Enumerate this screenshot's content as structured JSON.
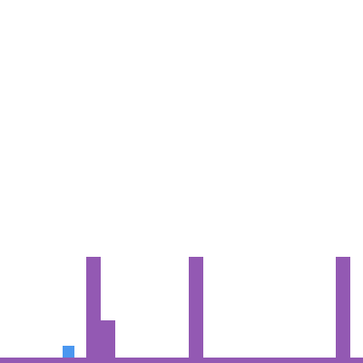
{
  "game": {
    "colors": {
      "background": "#ffffff",
      "ground": "#9359b3",
      "obstacle": "#9359b3",
      "player": "#4b97f0"
    },
    "entities": {
      "player": {
        "shape": "square"
      },
      "obstacles": [
        {
          "kind": "tall-pillar"
        },
        {
          "kind": "low-block"
        },
        {
          "kind": "tall-pillar"
        },
        {
          "kind": "tall-pillar"
        }
      ]
    }
  }
}
